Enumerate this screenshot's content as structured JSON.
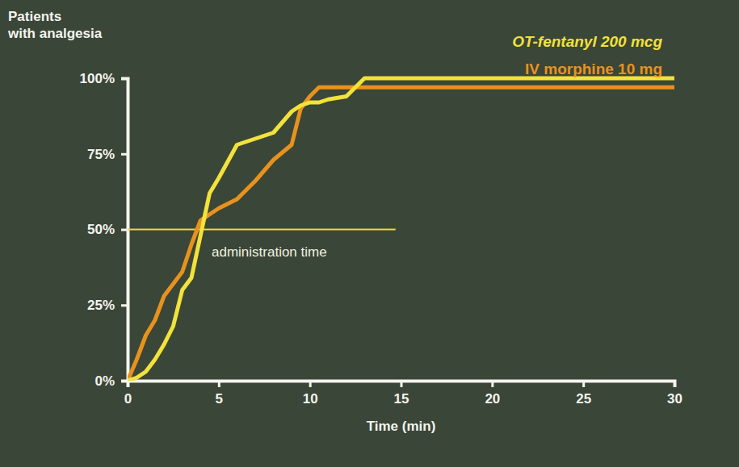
{
  "chart_data": {
    "type": "line",
    "y_label": "Patients with analgesia",
    "x_label": "Time (min)",
    "x": [
      0,
      0.5,
      1,
      1.5,
      2,
      2.5,
      3,
      3.5,
      4,
      4.5,
      5,
      6,
      7,
      8,
      9,
      9.5,
      10,
      10.5,
      11,
      12,
      13,
      15,
      20,
      25,
      30
    ],
    "series": [
      {
        "name": "OT-fentanyl 200 mcg",
        "color": "#f2e23a",
        "values": [
          0,
          1,
          3,
          7,
          12,
          18,
          30,
          34,
          48,
          62,
          67,
          78,
          80,
          82,
          89,
          91,
          92,
          92,
          93,
          94,
          100,
          100,
          100,
          100,
          100
        ]
      },
      {
        "name": "IV morphine 10 mg",
        "color": "#e8921e",
        "values": [
          0,
          7,
          15,
          20,
          28,
          32,
          36,
          45,
          53,
          55,
          57,
          60,
          66,
          73,
          78,
          90,
          94,
          97,
          97,
          97,
          97,
          97,
          97,
          97,
          97
        ]
      }
    ],
    "annotations": [
      {
        "text": "administration time",
        "x": [
          0,
          14.7
        ],
        "y": 50
      }
    ],
    "xlim": [
      0,
      30
    ],
    "xticks": [
      0,
      5,
      10,
      15,
      20,
      25,
      30
    ],
    "ylim": [
      0,
      100
    ],
    "yticks": [
      {
        "value": 0,
        "label": "0%"
      },
      {
        "value": 25,
        "label": "25%"
      },
      {
        "value": 50,
        "label": "50%"
      },
      {
        "value": 75,
        "label": "75%"
      },
      {
        "value": 100,
        "label": "100%"
      }
    ],
    "legend": "top-right",
    "grid": false
  }
}
